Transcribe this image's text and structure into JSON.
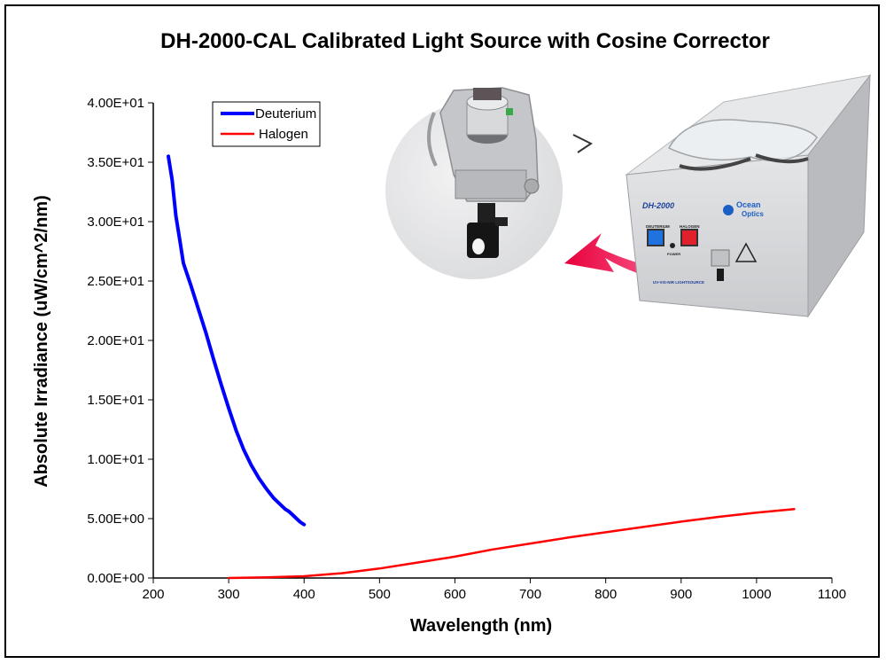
{
  "chart_data": {
    "type": "line",
    "title": "DH-2000-CAL Calibrated Light Source with Cosine Corrector",
    "xlabel": "Wavelength (nm)",
    "ylabel": "Absolute Irradiance (uW/cm^2/nm)",
    "xlim": [
      200,
      1100
    ],
    "ylim": [
      0,
      40
    ],
    "x_ticks": [
      "200",
      "300",
      "400",
      "500",
      "600",
      "700",
      "800",
      "900",
      "1000",
      "1100"
    ],
    "y_ticks": [
      "0.00E+00",
      "5.00E+00",
      "1.00E+01",
      "1.50E+01",
      "2.00E+01",
      "2.50E+01",
      "3.00E+01",
      "3.50E+01",
      "4.00E+01"
    ],
    "grid": false,
    "legend": "top-left",
    "series": [
      {
        "name": "Deuterium",
        "color": "#0000ff",
        "x": [
          220,
          225,
          230,
          235,
          240,
          250,
          260,
          270,
          280,
          290,
          300,
          310,
          320,
          330,
          340,
          350,
          360,
          370,
          375,
          380,
          385,
          390,
          395,
          400
        ],
        "y": [
          35.5,
          33.5,
          30.5,
          28.5,
          26.5,
          24.6,
          22.6,
          20.6,
          18.4,
          16.3,
          14.3,
          12.4,
          10.8,
          9.5,
          8.4,
          7.5,
          6.7,
          6.1,
          5.8,
          5.6,
          5.3,
          5.0,
          4.7,
          4.5
        ]
      },
      {
        "name": "Halogen",
        "color": "#ff0000",
        "x": [
          300,
          350,
          400,
          450,
          500,
          550,
          600,
          650,
          700,
          750,
          800,
          850,
          900,
          950,
          1000,
          1050
        ],
        "y": [
          0.0,
          0.05,
          0.15,
          0.4,
          0.8,
          1.3,
          1.8,
          2.4,
          2.9,
          3.4,
          3.85,
          4.3,
          4.75,
          5.15,
          5.5,
          5.8
        ]
      }
    ]
  },
  "photo": {
    "unit_label": "DH-2000",
    "brand_line1": "Ocean",
    "brand_line2": "Optics",
    "deuterium_label": "DEUTERIUM",
    "halogen_label": "HALOGEN",
    "power_label": "POWER",
    "fiber_label": "UV-VIS-NIR LIGHTSOURCE"
  },
  "colors": {
    "arrow": "#e8003a",
    "device_body": "#d4d6d9"
  }
}
